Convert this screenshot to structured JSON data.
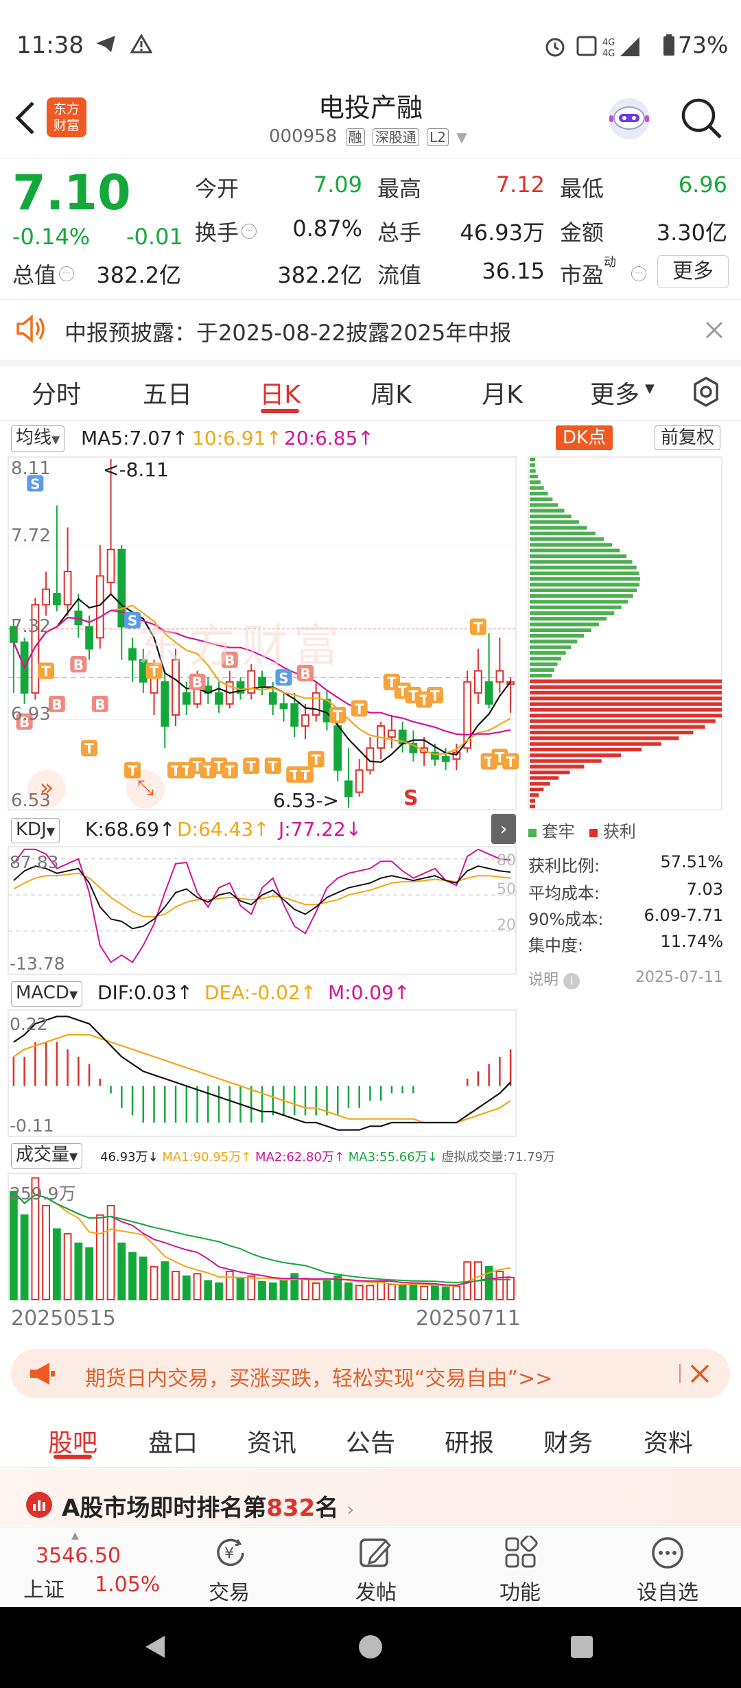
{
  "status_bar": {
    "time": "11:38",
    "battery": "73%",
    "network": "4G"
  },
  "header": {
    "logo_line1": "东方",
    "logo_line2": "财富",
    "title": "电投产融",
    "code": "000958",
    "badges": [
      "融",
      "深股通",
      "L2"
    ]
  },
  "quote": {
    "price": "7.10",
    "change_pct": "-0.14%",
    "change": "-0.01",
    "fields": [
      {
        "label": "今开",
        "value": "7.09",
        "color": "green"
      },
      {
        "label": "最高",
        "value": "7.12",
        "color": "red"
      },
      {
        "label": "最低",
        "value": "6.96",
        "color": "green"
      },
      {
        "label": "换手",
        "value": "0.87%",
        "color": "dark"
      },
      {
        "label": "总手",
        "value": "46.93万",
        "color": "dark"
      },
      {
        "label": "金额",
        "value": "3.30亿",
        "color": "dark"
      },
      {
        "label": "总值",
        "value": "382.2亿",
        "color": "dark"
      },
      {
        "label": "流值",
        "value": "382.2亿",
        "color": "dark"
      },
      {
        "label": "市盈",
        "value": "36.15",
        "color": "dark"
      }
    ],
    "pe_sup": "动",
    "more_label": "更多"
  },
  "notice": {
    "text": "中报预披露：于2025-08-22披露2025年中报"
  },
  "chart_tabs": [
    "分时",
    "五日",
    "日K",
    "周K",
    "月K",
    "更多"
  ],
  "active_tab": "日K",
  "ma_bar": {
    "selector": "均线",
    "ma5": "MA5:7.07",
    "ma10": "10:6.91",
    "ma20": "20:6.85",
    "dk": "DK点",
    "fq": "前复权"
  },
  "kline": {
    "y_labels": [
      "8.11",
      "7.72",
      "7.32",
      "6.93",
      "6.53"
    ],
    "high_note": "<-8.11",
    "low_note": "6.53->",
    "s_mark": "S",
    "watermark": "东方财富"
  },
  "kdj": {
    "selector": "KDJ",
    "k": "K:68.69",
    "d": "D:64.43",
    "j": "J:77.22",
    "y_top": "87.83",
    "y_bot": "-13.78",
    "levels": [
      "80",
      "50",
      "20"
    ]
  },
  "macd": {
    "selector": "MACD",
    "dif": "DIF:0.03",
    "dea": "DEA:-0.02",
    "m": "M:0.09",
    "y_top": "0.22",
    "y_bot": "-0.11"
  },
  "volume": {
    "selector": "成交量",
    "v": "46.93万",
    "ma1": "MA1:90.95万",
    "ma2": "MA2:62.80万",
    "ma3": "MA3:55.66万",
    "virtual": "虚拟成交量:71.79万",
    "y_top": "259.9万",
    "date_start": "20250515",
    "date_end": "20250711"
  },
  "chip": {
    "legend_trap": "套牢",
    "legend_profit": "获利",
    "rows": [
      {
        "label": "获利比例:",
        "value": "57.51%"
      },
      {
        "label": "平均成本:",
        "value": "7.03"
      },
      {
        "label": "90%成本:",
        "value": "6.09-7.71"
      },
      {
        "label": "集中度:",
        "value": "11.74%"
      }
    ],
    "note": "说明",
    "date": "2025-07-11"
  },
  "ad": {
    "text": "期货日内交易，买涨买跌，轻松实现“交易自由”>>"
  },
  "bottom_tabs": [
    "股吧",
    "盘口",
    "资讯",
    "公告",
    "研报",
    "财务",
    "资料"
  ],
  "rank": {
    "prefix": "A股市场即时排名第",
    "num": "832",
    "suffix": "名"
  },
  "footer": {
    "index_value": "3546.50",
    "index_name": "上证",
    "index_pct": "1.05%",
    "items": [
      "交易",
      "发帖",
      "功能",
      "设自选"
    ]
  },
  "colors": {
    "up": "#e0302b",
    "down": "#14a83a",
    "accent": "#f0701e"
  },
  "chart_data": {
    "type": "candlestick",
    "candles": [
      [
        7.35,
        7.28,
        7.38,
        7.05
      ],
      [
        7.28,
        7.05,
        7.3,
        7.0
      ],
      [
        7.05,
        7.45,
        7.48,
        7.02
      ],
      [
        7.45,
        7.52,
        7.6,
        7.4
      ],
      [
        7.5,
        7.45,
        7.9,
        7.42
      ],
      [
        7.45,
        7.6,
        7.8,
        7.4
      ],
      [
        7.42,
        7.36,
        7.5,
        7.3
      ],
      [
        7.35,
        7.25,
        7.4,
        7.2
      ],
      [
        7.3,
        7.58,
        7.72,
        7.25
      ],
      [
        7.55,
        7.7,
        8.11,
        7.5
      ],
      [
        7.7,
        7.35,
        7.72,
        7.2
      ],
      [
        7.25,
        7.2,
        7.3,
        7.1
      ],
      [
        7.2,
        7.1,
        7.25,
        7.05
      ],
      [
        7.05,
        7.15,
        7.2,
        6.95
      ],
      [
        7.1,
        6.9,
        7.15,
        6.8
      ],
      [
        6.95,
        7.2,
        7.25,
        6.9
      ],
      [
        7.05,
        7.0,
        7.1,
        6.95
      ],
      [
        7.0,
        7.1,
        7.15,
        6.98
      ],
      [
        7.08,
        7.05,
        7.12,
        7.0
      ],
      [
        7.05,
        7.0,
        7.1,
        6.96
      ],
      [
        7.0,
        7.1,
        7.15,
        6.98
      ],
      [
        7.1,
        7.05,
        7.12,
        7.02
      ],
      [
        7.05,
        7.15,
        7.18,
        7.02
      ],
      [
        7.12,
        7.08,
        7.15,
        7.04
      ],
      [
        7.05,
        7.0,
        7.1,
        6.95
      ],
      [
        7.0,
        6.98,
        7.05,
        6.92
      ],
      [
        7.0,
        6.9,
        7.05,
        6.85
      ],
      [
        6.9,
        6.95,
        7.0,
        6.84
      ],
      [
        6.95,
        7.05,
        7.1,
        6.92
      ],
      [
        7.02,
        6.92,
        7.06,
        6.88
      ],
      [
        6.9,
        6.7,
        6.95,
        6.65
      ],
      [
        6.65,
        6.58,
        6.8,
        6.53
      ],
      [
        6.6,
        6.7,
        6.75,
        6.58
      ],
      [
        6.7,
        6.8,
        6.85,
        6.68
      ],
      [
        6.8,
        6.9,
        6.92,
        6.75
      ],
      [
        6.85,
        6.88,
        6.95,
        6.8
      ],
      [
        6.88,
        6.82,
        6.92,
        6.78
      ],
      [
        6.82,
        6.78,
        6.88,
        6.74
      ],
      [
        6.78,
        6.8,
        6.85,
        6.72
      ],
      [
        6.78,
        6.75,
        6.82,
        6.72
      ],
      [
        6.76,
        6.74,
        6.8,
        6.7
      ],
      [
        6.75,
        6.78,
        6.82,
        6.7
      ],
      [
        6.8,
        7.1,
        7.15,
        6.78
      ],
      [
        7.05,
        7.15,
        7.25,
        7.0
      ],
      [
        7.1,
        7.0,
        7.32,
        6.98
      ],
      [
        7.1,
        7.15,
        7.3,
        7.05
      ],
      [
        7.09,
        7.1,
        7.12,
        6.96
      ]
    ],
    "y_range": [
      6.53,
      8.11
    ]
  }
}
